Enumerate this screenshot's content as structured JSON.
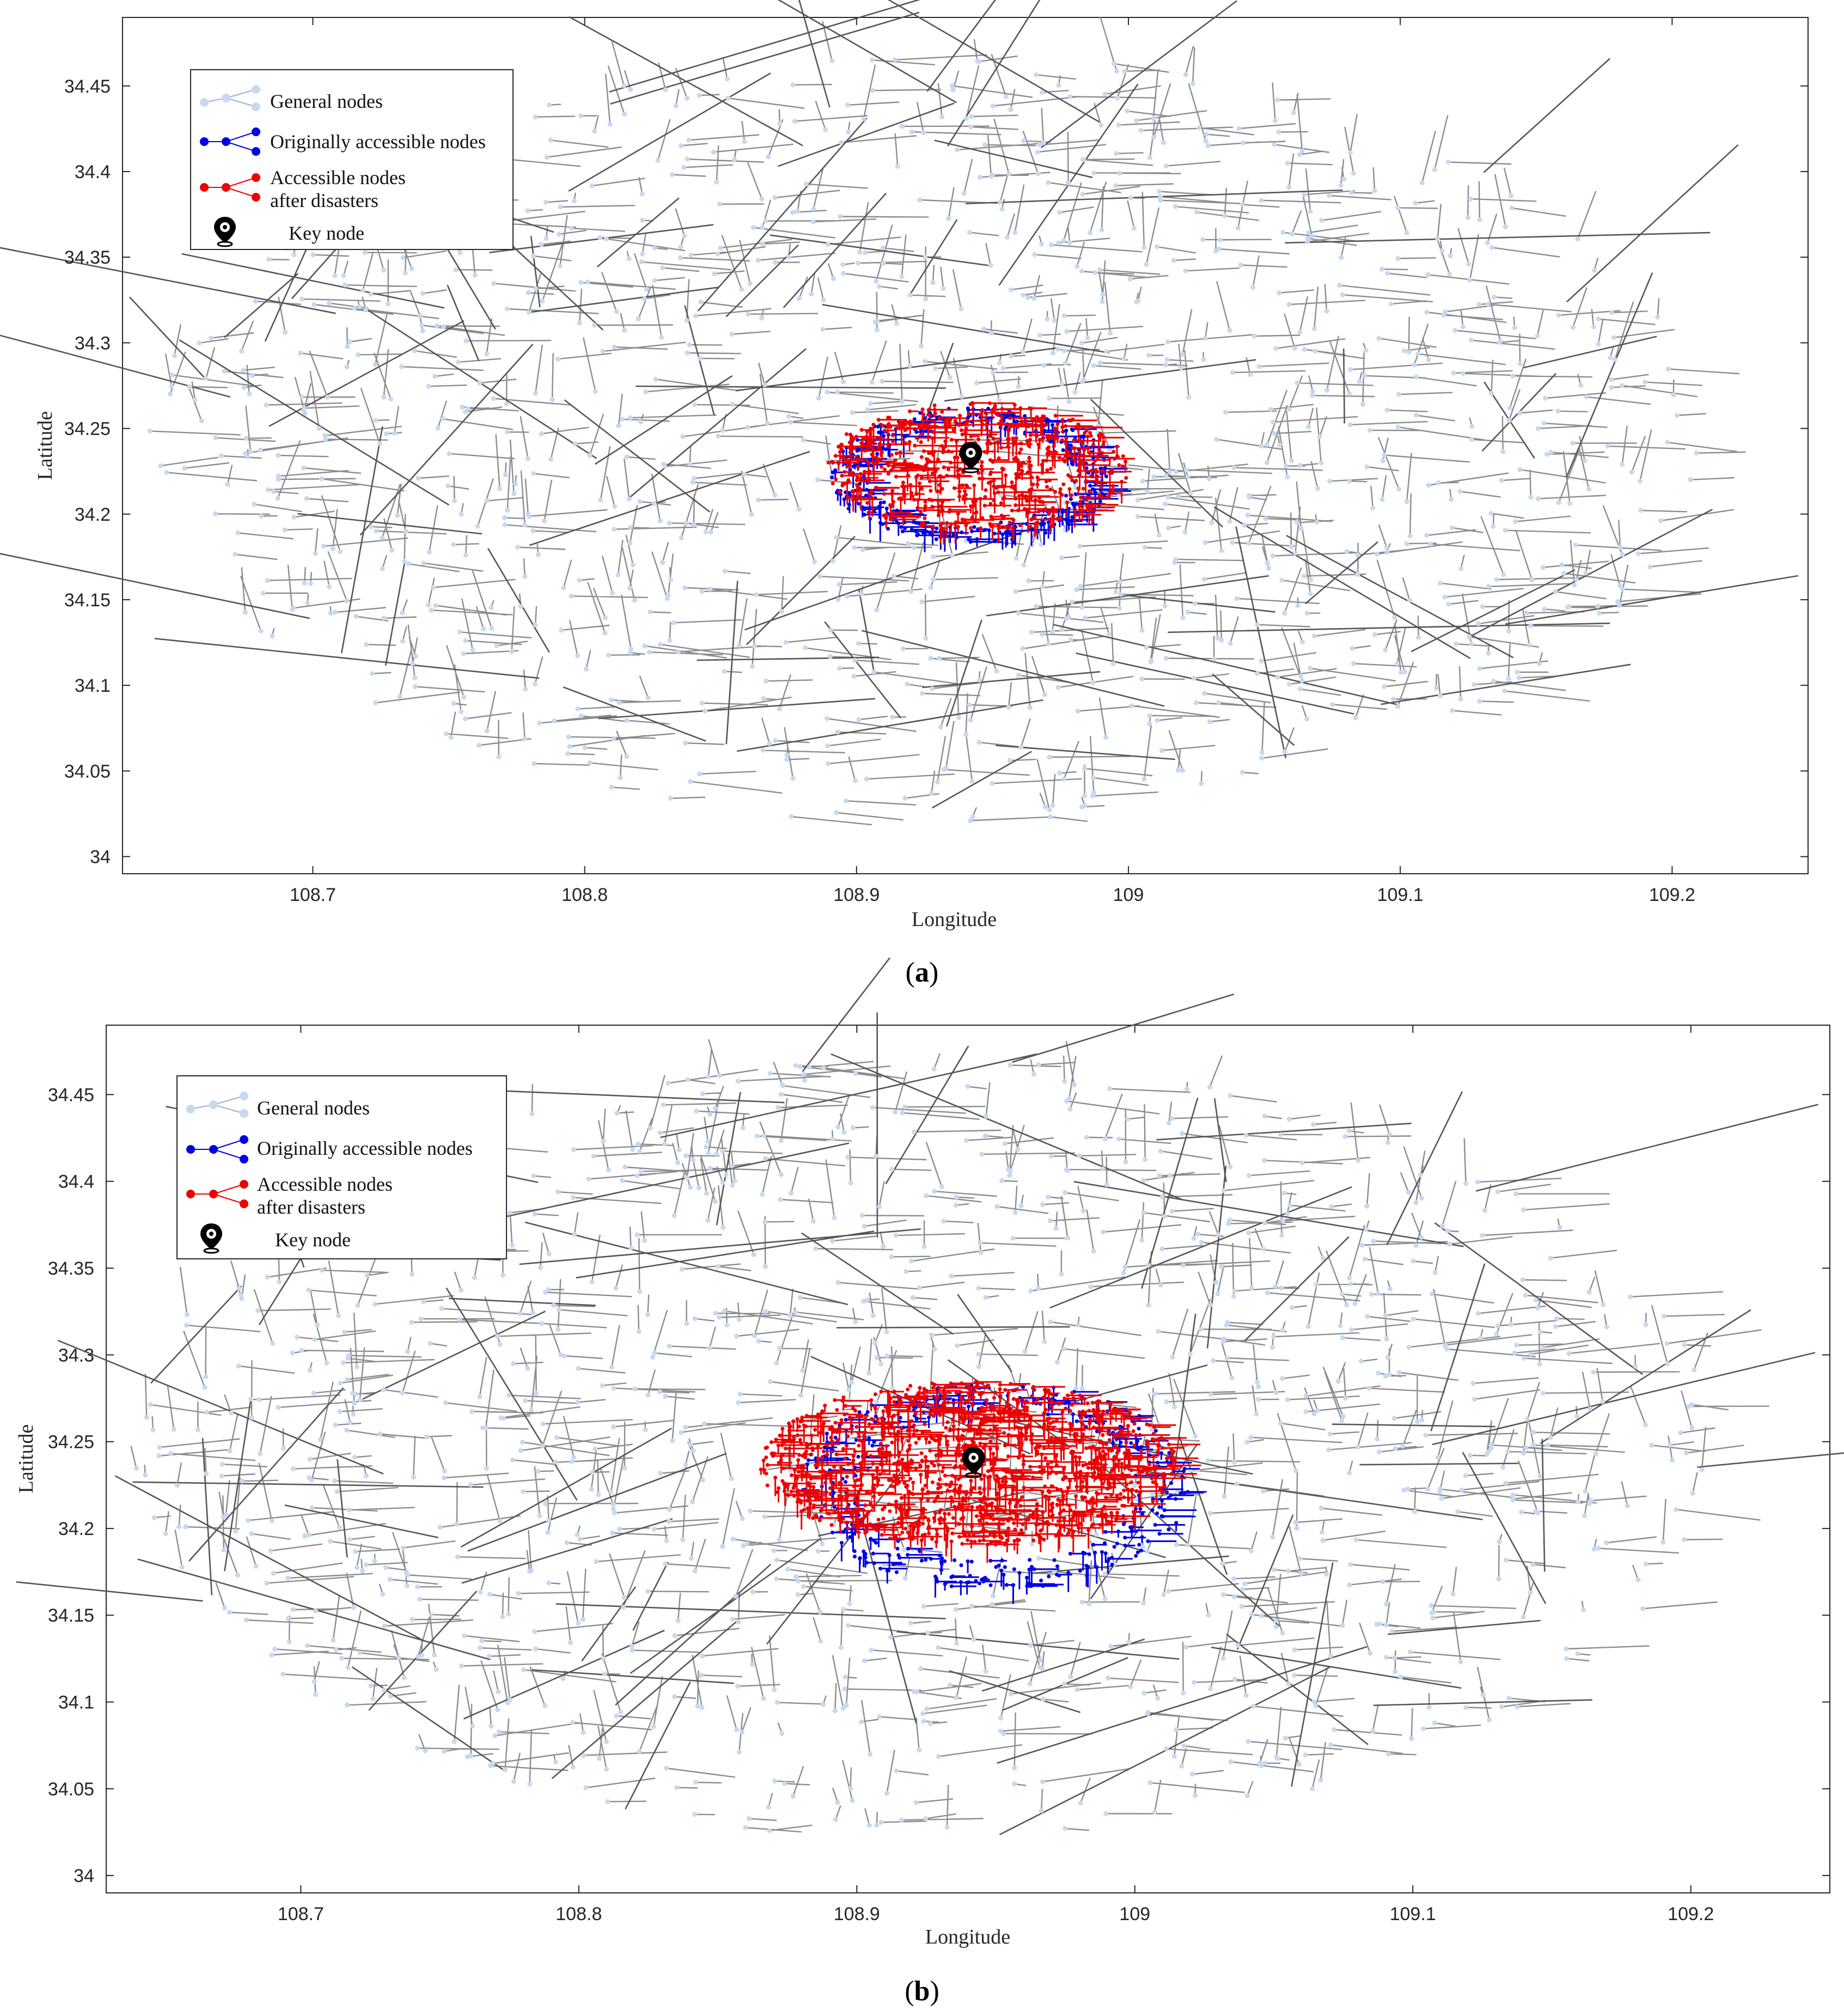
{
  "colors": {
    "road": "#8c8c8c",
    "road_dark": "#555555",
    "general_node": "#c6d9f1",
    "original_node": "#0000e6",
    "after_node": "#ee0000",
    "key_node": "#000000"
  },
  "chart_data": [
    {
      "type": "scatter",
      "panel": "a",
      "caption_open": "(",
      "caption_letter": "a",
      "caption_close": ")",
      "xlabel": "Longitude",
      "ylabel": "Latitude",
      "xlim": [
        108.63,
        109.25
      ],
      "ylim": [
        33.99,
        34.49
      ],
      "xticks": [
        108.7,
        108.8,
        108.9,
        109,
        109.1,
        109.2
      ],
      "xtick_labels": [
        "108.7",
        "108.8",
        "108.9",
        "109",
        "109.1",
        "109.2"
      ],
      "yticks": [
        34,
        34.05,
        34.1,
        34.15,
        34.2,
        34.25,
        34.3,
        34.35,
        34.4,
        34.45
      ],
      "ytick_labels": [
        "34",
        "34.05",
        "34.1",
        "34.15",
        "34.2",
        "34.25",
        "34.3",
        "34.35",
        "34.4",
        "34.45"
      ],
      "legend": [
        {
          "label": "General nodes",
          "color_key": "general_node"
        },
        {
          "label": "Originally accessible nodes",
          "color_key": "original_node"
        },
        {
          "label": "Accessible nodes",
          "label2": "after disasters",
          "color_key": "after_node"
        },
        {
          "label": "Key node",
          "color_key": "key_node"
        }
      ],
      "key_node": {
        "lon": 108.942,
        "lat": 34.232
      },
      "network_extent": {
        "lon": [
          108.64,
          109.21
        ],
        "lat": [
          34.02,
          34.47
        ]
      },
      "original_accessible_region": {
        "lon": [
          108.89,
          108.995
        ],
        "lat": [
          34.183,
          34.262
        ]
      },
      "after_disaster_region": {
        "lon": [
          108.888,
          109.0
        ],
        "lat": [
          34.19,
          34.265
        ]
      }
    },
    {
      "type": "scatter",
      "panel": "b",
      "caption_open": "(",
      "caption_letter": "b",
      "caption_close": ")",
      "xlabel": "Longitude",
      "ylabel": "Latitude",
      "xlim": [
        108.63,
        109.25
      ],
      "ylim": [
        33.99,
        34.49
      ],
      "xticks": [
        108.7,
        108.8,
        108.9,
        109,
        109.1,
        109.2
      ],
      "xtick_labels": [
        "108.7",
        "108.8",
        "108.9",
        "109",
        "109.1",
        "109.2"
      ],
      "yticks": [
        34,
        34.05,
        34.1,
        34.15,
        34.2,
        34.25,
        34.3,
        34.35,
        34.4,
        34.45
      ],
      "ytick_labels": [
        "34",
        "34.05",
        "34.1",
        "34.15",
        "34.2",
        "34.25",
        "34.3",
        "34.35",
        "34.4",
        "34.45"
      ],
      "legend": [
        {
          "label": "General nodes",
          "color_key": "general_node"
        },
        {
          "label": "Originally accessible nodes",
          "color_key": "original_node"
        },
        {
          "label": "Accessible nodes",
          "label2": "after disasters",
          "color_key": "after_node"
        },
        {
          "label": "Key node",
          "color_key": "key_node"
        }
      ],
      "key_node": {
        "lon": 108.942,
        "lat": 34.237
      },
      "network_extent": {
        "lon": [
          108.64,
          109.21
        ],
        "lat": [
          34.02,
          34.47
        ]
      },
      "original_accessible_region": {
        "lon": [
          108.88,
          109.02
        ],
        "lat": [
          34.165,
          34.285
        ]
      },
      "after_disaster_region": {
        "lon": [
          108.865,
          109.015
        ],
        "lat": [
          34.19,
          34.285
        ]
      }
    }
  ]
}
